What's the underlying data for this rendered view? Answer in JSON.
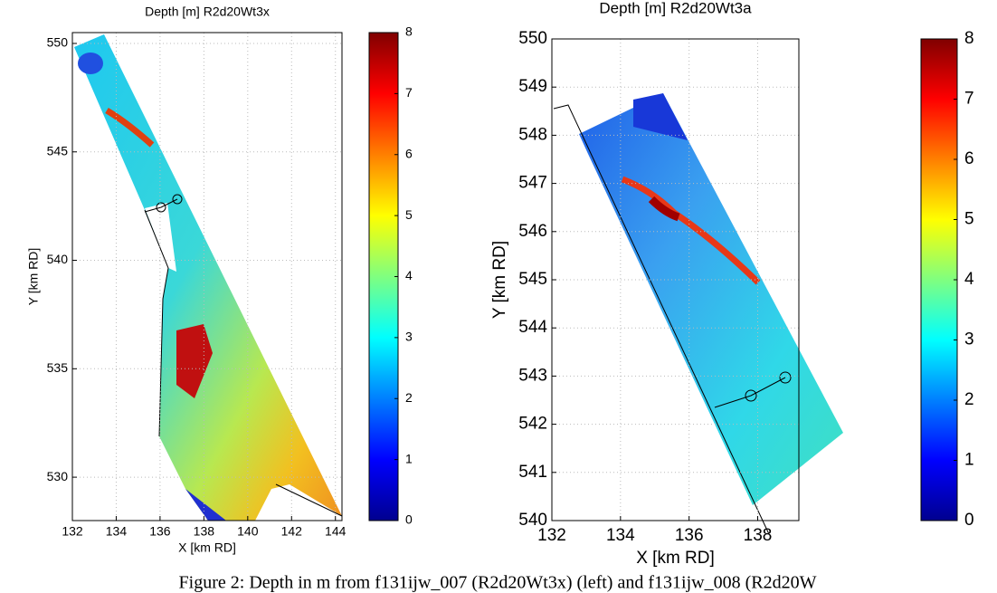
{
  "chart_data": [
    {
      "type": "map",
      "title": "Depth [m] R2d20Wt3x",
      "xlabel": "X [km RD]",
      "ylabel": "Y [km RD]",
      "xlim": [
        132,
        144.3
      ],
      "ylim": [
        528,
        550.5
      ],
      "xticks": [
        132,
        134,
        136,
        138,
        140,
        142,
        144
      ],
      "yticks": [
        530,
        535,
        540,
        545,
        550
      ],
      "grid": true,
      "colormap": "jet",
      "colorbar": {
        "lim": [
          0,
          8
        ],
        "ticks": [
          0,
          1,
          2,
          3,
          4,
          5,
          6,
          7,
          8
        ]
      }
    },
    {
      "type": "map",
      "title": "Depth [m] R2d20Wt3a",
      "xlabel": "X [km RD]",
      "ylabel": "Y [km RD]",
      "xlim": [
        132,
        139.2
      ],
      "ylim": [
        540,
        550
      ],
      "xticks": [
        132,
        134,
        136,
        138
      ],
      "yticks": [
        540,
        541,
        542,
        543,
        544,
        545,
        546,
        547,
        548,
        549,
        550
      ],
      "grid": true,
      "colormap": "jet",
      "colorbar": {
        "lim": [
          0,
          8
        ],
        "ticks": [
          0,
          1,
          2,
          3,
          4,
          5,
          6,
          7,
          8
        ]
      }
    }
  ],
  "caption": "Figure 2: Depth in m from f131ijw_007 (R2d20Wt3x) (left) and f131ijw_008 (R2d20W"
}
